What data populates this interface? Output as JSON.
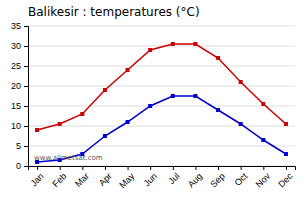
{
  "chart_data": {
    "type": "line",
    "title": "Balikesir : temperatures (°C)",
    "categories": [
      "Jan",
      "Feb",
      "Mar",
      "Apr",
      "May",
      "Jun",
      "Jul",
      "Aug",
      "Sep",
      "Oct",
      "Nov",
      "Dec"
    ],
    "series": [
      {
        "color": "#cc0000",
        "marker": "square",
        "values": [
          9,
          10.5,
          13,
          19,
          24,
          29,
          30.5,
          30.5,
          27,
          21,
          15.5,
          10.5
        ]
      },
      {
        "color": "#0000cc",
        "marker": "square",
        "values": [
          1,
          1.5,
          3,
          7.5,
          11,
          15,
          17.5,
          17.5,
          14,
          10.5,
          6.5,
          3
        ]
      }
    ],
    "ylim": [
      0,
      35
    ],
    "yticks": [
      0,
      5,
      10,
      15,
      20,
      25,
      30,
      35
    ],
    "grid": true,
    "annotations": [
      "www.allmetsat.com"
    ]
  }
}
